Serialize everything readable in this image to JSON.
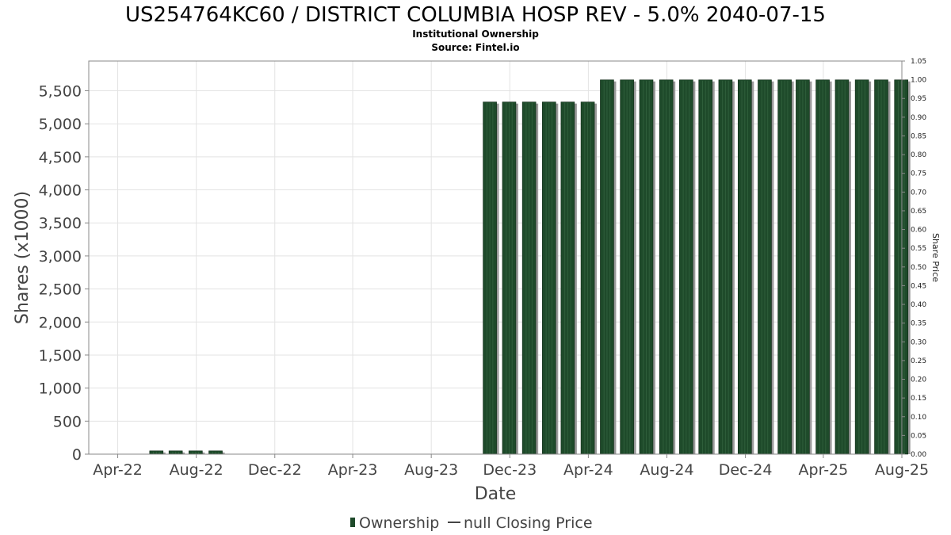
{
  "chart_data": {
    "type": "bar",
    "title": "US254764KC60 / DISTRICT COLUMBIA HOSP REV - 5.0% 2040-07-15",
    "subtitle": "Institutional Ownership",
    "source": "Source: Fintel.io",
    "xlabel": "Date",
    "ylabel": "Shares (x1000)",
    "y2label": "Share Price",
    "ylim": [
      0,
      5950
    ],
    "y2lim": [
      0,
      1.05
    ],
    "grid": true,
    "legend_position": "bottom",
    "x_ticks": [
      "Apr-22",
      "Aug-22",
      "Dec-22",
      "Apr-23",
      "Aug-23",
      "Dec-23",
      "Apr-24",
      "Aug-24",
      "Dec-24",
      "Apr-25",
      "Aug-25"
    ],
    "y_ticks": [
      "0",
      "500",
      "1,000",
      "1,500",
      "2,000",
      "2,500",
      "3,000",
      "3,500",
      "4,000",
      "4,500",
      "5,000",
      "5,500"
    ],
    "y2_ticks": [
      "0.00",
      "0.05",
      "0.10",
      "0.15",
      "0.20",
      "0.25",
      "0.30",
      "0.35",
      "0.40",
      "0.45",
      "0.50",
      "0.55",
      "0.60",
      "0.65",
      "0.70",
      "0.75",
      "0.80",
      "0.85",
      "0.90",
      "0.95",
      "1.00",
      "1.05"
    ],
    "series": [
      {
        "name": "Ownership",
        "color": "#1e4a2a",
        "x": [
          "2022-05-31",
          "2022-06-30",
          "2022-07-31",
          "2022-08-31",
          "2023-10-31",
          "2023-11-30",
          "2023-12-31",
          "2024-01-31",
          "2024-02-29",
          "2024-03-31",
          "2024-04-30",
          "2024-05-31",
          "2024-06-30",
          "2024-07-31",
          "2024-08-31",
          "2024-09-30",
          "2024-10-31",
          "2024-11-30",
          "2024-12-31",
          "2025-01-31",
          "2025-02-28",
          "2025-03-31",
          "2025-04-30",
          "2025-05-31",
          "2025-06-30",
          "2025-07-31"
        ],
        "values": [
          50,
          50,
          50,
          50,
          5330,
          5330,
          5330,
          5330,
          5330,
          5330,
          5665,
          5665,
          5665,
          5665,
          5665,
          5665,
          5665,
          5665,
          5665,
          5665,
          5665,
          5665,
          5665,
          5665,
          5665,
          5665
        ]
      }
    ],
    "legend": [
      {
        "label": "Ownership",
        "marker": "bar"
      },
      {
        "label": "null Closing Price",
        "marker": "line"
      }
    ]
  }
}
